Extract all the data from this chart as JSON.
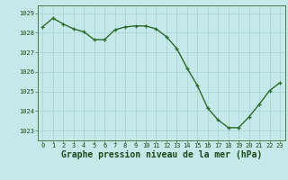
{
  "x": [
    0,
    1,
    2,
    3,
    4,
    5,
    6,
    7,
    8,
    9,
    10,
    11,
    12,
    13,
    14,
    15,
    16,
    17,
    18,
    19,
    20,
    21,
    22,
    23
  ],
  "y": [
    1028.3,
    1028.75,
    1028.45,
    1028.2,
    1028.05,
    1027.65,
    1027.65,
    1028.15,
    1028.3,
    1028.35,
    1028.35,
    1028.2,
    1027.8,
    1027.2,
    1026.2,
    1025.3,
    1024.15,
    1023.55,
    1023.15,
    1023.15,
    1023.7,
    1024.35,
    1025.05,
    1025.45
  ],
  "line_color": "#2d6a2d",
  "marker_color": "#2d6a2d",
  "bg_color": "#c5e8e8",
  "grid_color": "#a8d5d5",
  "xlabel": "Graphe pression niveau de la mer (hPa)",
  "xlabel_color": "#1a4a1a",
  "ylim": [
    1022.5,
    1029.4
  ],
  "xlim": [
    -0.5,
    23.5
  ],
  "yticks": [
    1023,
    1024,
    1025,
    1026,
    1027,
    1028,
    1029
  ],
  "xticks": [
    0,
    1,
    2,
    3,
    4,
    5,
    6,
    7,
    8,
    9,
    10,
    11,
    12,
    13,
    14,
    15,
    16,
    17,
    18,
    19,
    20,
    21,
    22,
    23
  ],
  "tick_color": "#1a4a1a",
  "tick_fontsize": 5.0,
  "xlabel_fontsize": 7.0,
  "linewidth": 1.0,
  "markersize": 3.0,
  "spine_color": "#4a7a4a"
}
